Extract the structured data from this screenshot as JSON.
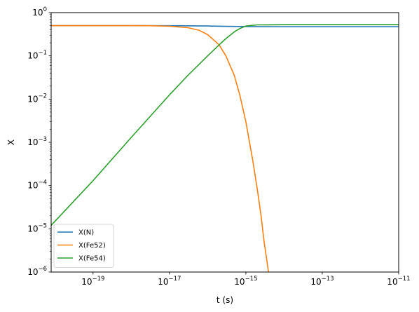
{
  "chart_data": {
    "type": "line",
    "xlabel": "t (s)",
    "ylabel": "X",
    "xscale": "log",
    "yscale": "log",
    "xlim": [
      8e-21,
      1e-11
    ],
    "ylim": [
      1e-06,
      1
    ],
    "grid": false,
    "legend_position": "lower-left",
    "x_ticks": [
      {
        "value": 1e-19,
        "base": "10",
        "exp": "−19"
      },
      {
        "value": 1e-17,
        "base": "10",
        "exp": "−17"
      },
      {
        "value": 1e-15,
        "base": "10",
        "exp": "−15"
      },
      {
        "value": 1e-13,
        "base": "10",
        "exp": "−13"
      },
      {
        "value": 1e-11,
        "base": "10",
        "exp": "−11"
      }
    ],
    "y_ticks": [
      {
        "value": 1e-06,
        "base": "10",
        "exp": "−6"
      },
      {
        "value": 1e-05,
        "base": "10",
        "exp": "−5"
      },
      {
        "value": 0.0001,
        "base": "10",
        "exp": "−4"
      },
      {
        "value": 0.001,
        "base": "10",
        "exp": "−3"
      },
      {
        "value": 0.01,
        "base": "10",
        "exp": "−2"
      },
      {
        "value": 0.1,
        "base": "10",
        "exp": "−1"
      },
      {
        "value": 1,
        "base": "10",
        "exp": "0"
      }
    ],
    "series": [
      {
        "name": "X(N)",
        "color": "#1f77b4",
        "points": [
          [
            8e-21,
            0.5
          ],
          [
            1e-19,
            0.5
          ],
          [
            1e-18,
            0.5
          ],
          [
            1e-17,
            0.499
          ],
          [
            1e-16,
            0.49
          ],
          [
            3e-16,
            0.482
          ],
          [
            1e-15,
            0.476
          ],
          [
            3e-15,
            0.474
          ],
          [
            1e-14,
            0.474
          ],
          [
            1e-13,
            0.474
          ],
          [
            1e-12,
            0.474
          ],
          [
            1e-11,
            0.474
          ]
        ]
      },
      {
        "name": "X(Fe52)",
        "color": "#ff7f0e",
        "points": [
          [
            8e-21,
            0.5
          ],
          [
            1e-19,
            0.5
          ],
          [
            1e-18,
            0.5
          ],
          [
            3e-18,
            0.497
          ],
          [
            1e-17,
            0.485
          ],
          [
            3e-17,
            0.45
          ],
          [
            6e-17,
            0.39
          ],
          [
            1e-16,
            0.31
          ],
          [
            2e-16,
            0.18
          ],
          [
            3e-16,
            0.1
          ],
          [
            5e-16,
            0.035
          ],
          [
            7e-16,
            0.012
          ],
          [
            1e-15,
            0.003
          ],
          [
            1.5e-15,
            0.0004
          ],
          [
            2e-15,
            8e-05
          ],
          [
            2.5e-15,
            2e-05
          ],
          [
            3e-15,
            5e-06
          ],
          [
            3.5e-15,
            2e-06
          ],
          [
            3.9e-15,
            1e-06
          ]
        ]
      },
      {
        "name": "X(Fe54)",
        "color": "#2ca02c",
        "points": [
          [
            8e-21,
            1.2e-05
          ],
          [
            1e-19,
            0.00013
          ],
          [
            1e-18,
            0.0013
          ],
          [
            1e-17,
            0.0125
          ],
          [
            3e-17,
            0.035
          ],
          [
            1e-16,
            0.1
          ],
          [
            2e-16,
            0.18
          ],
          [
            3e-16,
            0.25
          ],
          [
            5e-16,
            0.36
          ],
          [
            7e-16,
            0.43
          ],
          [
            1e-15,
            0.49
          ],
          [
            2e-15,
            0.52
          ],
          [
            1e-14,
            0.526
          ],
          [
            1e-13,
            0.526
          ],
          [
            1e-12,
            0.526
          ],
          [
            1e-11,
            0.526
          ]
        ]
      }
    ]
  }
}
